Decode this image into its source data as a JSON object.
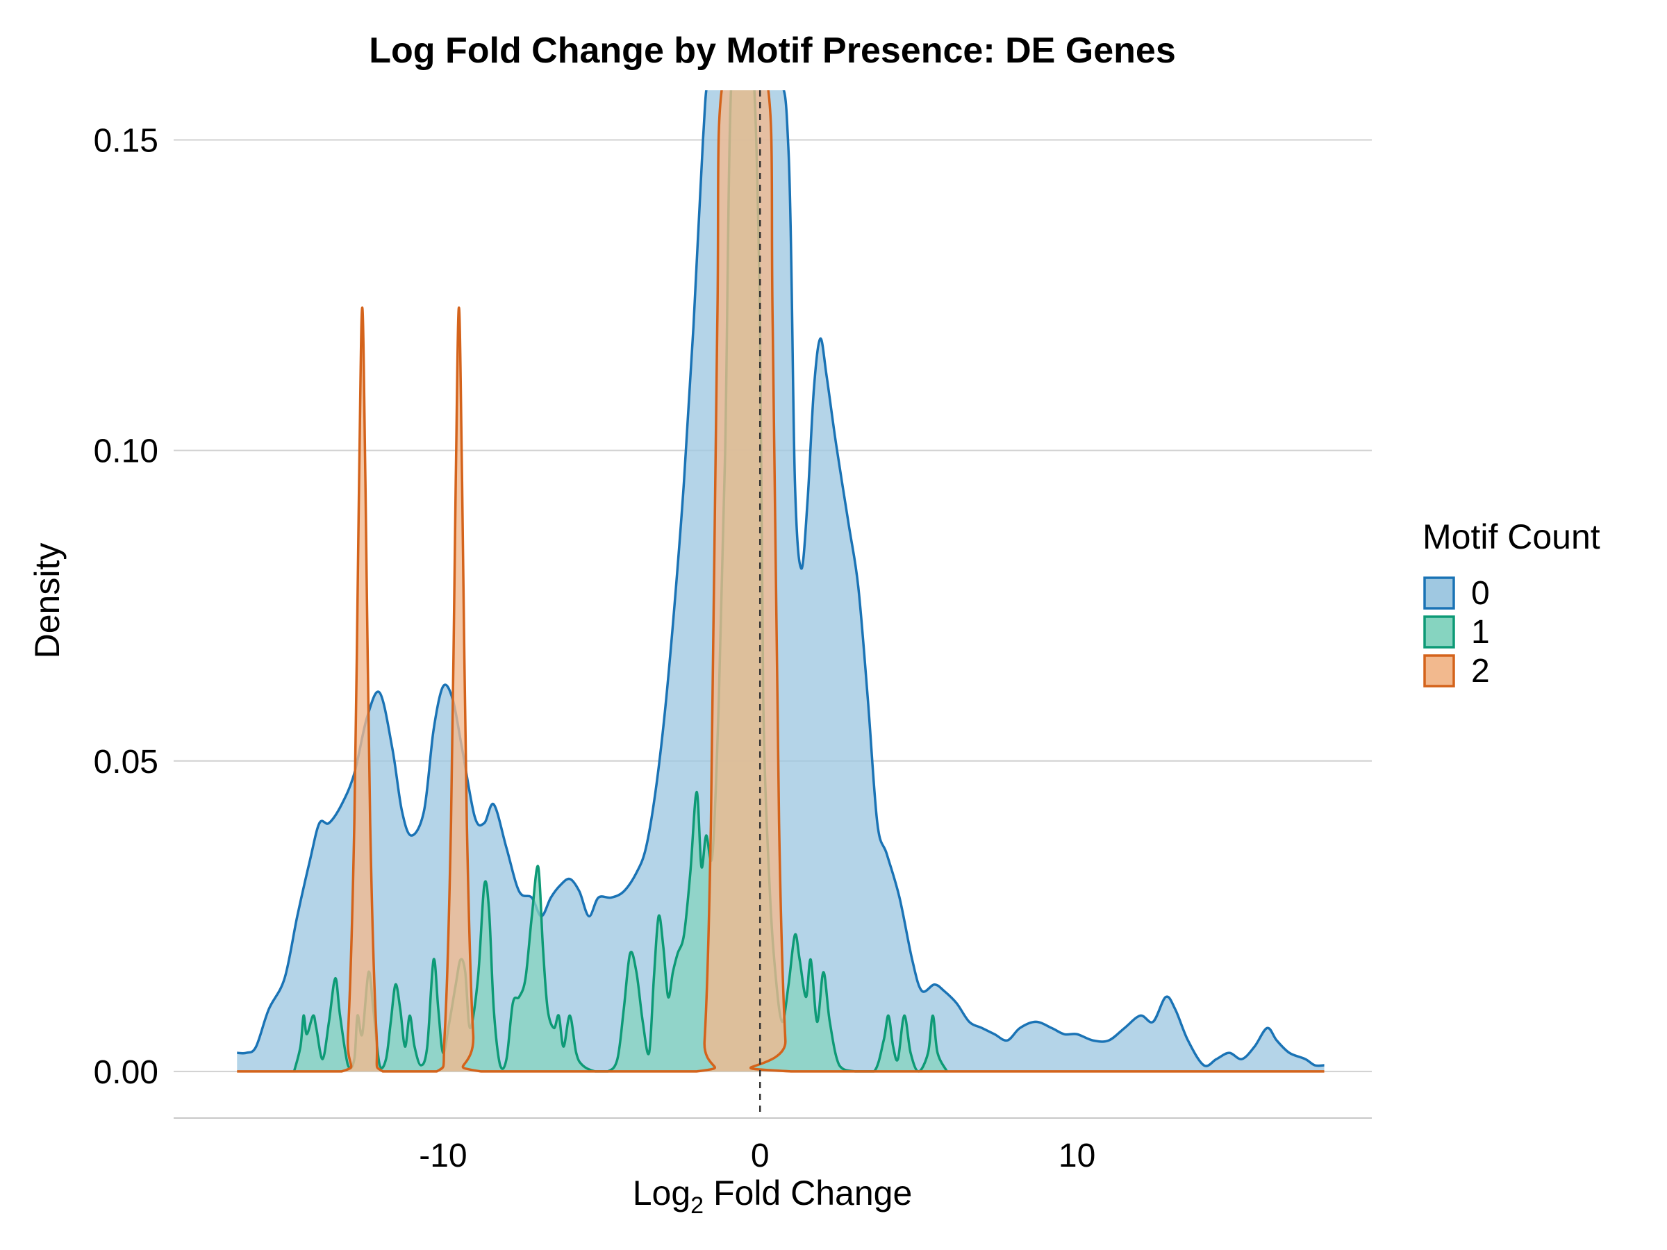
{
  "chart_data": {
    "type": "area",
    "title": "Log Fold Change by Motif Presence: DE Genes",
    "xlabel": {
      "base": "Log",
      "subscript": "2",
      "rest": " Fold Change"
    },
    "ylabel": "Density",
    "xlim": [
      -18.5,
      19.3
    ],
    "ylim": [
      -0.0075,
      0.158
    ],
    "x_ticks": [
      -10,
      0,
      10
    ],
    "x_tick_labels": [
      "-10",
      "0",
      "10"
    ],
    "y_ticks": [
      0,
      0.05,
      0.1,
      0.15
    ],
    "y_tick_labels": [
      "0.00",
      "0.05",
      "0.10",
      "0.15"
    ],
    "grid": "horizontal-major",
    "reference_line": {
      "x": 0,
      "style": "dashed"
    },
    "legend": {
      "title": "Motif Count",
      "position": "right"
    },
    "series": [
      {
        "name": "0",
        "color": "#1a73b5",
        "fill": "#9fc8e1",
        "points": [
          [
            -16.5,
            0.003
          ],
          [
            -16.2,
            0.003
          ],
          [
            -15.9,
            0.004
          ],
          [
            -15.5,
            0.01
          ],
          [
            -15.0,
            0.015
          ],
          [
            -14.6,
            0.025
          ],
          [
            -14.2,
            0.034
          ],
          [
            -13.9,
            0.04
          ],
          [
            -13.6,
            0.04
          ],
          [
            -13.2,
            0.043
          ],
          [
            -12.8,
            0.048
          ],
          [
            -12.4,
            0.057
          ],
          [
            -12.0,
            0.061
          ],
          [
            -11.6,
            0.052
          ],
          [
            -11.3,
            0.042
          ],
          [
            -11.0,
            0.038
          ],
          [
            -10.6,
            0.042
          ],
          [
            -10.3,
            0.055
          ],
          [
            -10.0,
            0.062
          ],
          [
            -9.7,
            0.06
          ],
          [
            -9.4,
            0.052
          ],
          [
            -9.0,
            0.041
          ],
          [
            -8.7,
            0.04
          ],
          [
            -8.4,
            0.043
          ],
          [
            -8.0,
            0.036
          ],
          [
            -7.6,
            0.029
          ],
          [
            -7.2,
            0.028
          ],
          [
            -6.9,
            0.025
          ],
          [
            -6.6,
            0.028
          ],
          [
            -6.3,
            0.03
          ],
          [
            -6.0,
            0.031
          ],
          [
            -5.7,
            0.029
          ],
          [
            -5.4,
            0.025
          ],
          [
            -5.1,
            0.028
          ],
          [
            -4.7,
            0.028
          ],
          [
            -4.3,
            0.029
          ],
          [
            -3.9,
            0.032
          ],
          [
            -3.6,
            0.036
          ],
          [
            -3.3,
            0.045
          ],
          [
            -3.0,
            0.058
          ],
          [
            -2.7,
            0.075
          ],
          [
            -2.4,
            0.095
          ],
          [
            -2.1,
            0.12
          ],
          [
            -1.8,
            0.15
          ],
          [
            -1.6,
            0.16
          ],
          [
            -1.0,
            0.16
          ],
          [
            0.5,
            0.16
          ],
          [
            0.9,
            0.148
          ],
          [
            1.1,
            0.095
          ],
          [
            1.3,
            0.081
          ],
          [
            1.5,
            0.092
          ],
          [
            1.7,
            0.11
          ],
          [
            1.9,
            0.118
          ],
          [
            2.1,
            0.112
          ],
          [
            2.4,
            0.101
          ],
          [
            2.8,
            0.088
          ],
          [
            3.1,
            0.078
          ],
          [
            3.4,
            0.06
          ],
          [
            3.7,
            0.04
          ],
          [
            4.0,
            0.035
          ],
          [
            4.4,
            0.028
          ],
          [
            4.8,
            0.018
          ],
          [
            5.1,
            0.013
          ],
          [
            5.5,
            0.014
          ],
          [
            5.8,
            0.013
          ],
          [
            6.2,
            0.011
          ],
          [
            6.6,
            0.008
          ],
          [
            7.0,
            0.007
          ],
          [
            7.4,
            0.006
          ],
          [
            7.8,
            0.005
          ],
          [
            8.2,
            0.007
          ],
          [
            8.7,
            0.008
          ],
          [
            9.2,
            0.007
          ],
          [
            9.6,
            0.006
          ],
          [
            10.0,
            0.006
          ],
          [
            10.5,
            0.005
          ],
          [
            11.0,
            0.005
          ],
          [
            11.5,
            0.007
          ],
          [
            12.0,
            0.009
          ],
          [
            12.4,
            0.008
          ],
          [
            12.8,
            0.012
          ],
          [
            13.1,
            0.01
          ],
          [
            13.5,
            0.005
          ],
          [
            14.0,
            0.001
          ],
          [
            14.4,
            0.002
          ],
          [
            14.8,
            0.003
          ],
          [
            15.2,
            0.002
          ],
          [
            15.6,
            0.004
          ],
          [
            16.0,
            0.007
          ],
          [
            16.3,
            0.005
          ],
          [
            16.7,
            0.003
          ],
          [
            17.2,
            0.002
          ],
          [
            17.5,
            0.001
          ],
          [
            17.8,
            0.001
          ]
        ]
      },
      {
        "name": "1",
        "color": "#0d9a76",
        "fill": "#86d4c0",
        "points": [
          [
            -14.7,
            0.0
          ],
          [
            -14.5,
            0.004
          ],
          [
            -14.4,
            0.009
          ],
          [
            -14.3,
            0.006
          ],
          [
            -14.1,
            0.009
          ],
          [
            -14.0,
            0.007
          ],
          [
            -13.8,
            0.002
          ],
          [
            -13.6,
            0.008
          ],
          [
            -13.4,
            0.015
          ],
          [
            -13.25,
            0.009
          ],
          [
            -13.0,
            0.001
          ],
          [
            -12.8,
            0.002
          ],
          [
            -12.7,
            0.009
          ],
          [
            -12.55,
            0.006
          ],
          [
            -12.35,
            0.016
          ],
          [
            -12.2,
            0.01
          ],
          [
            -12.0,
            0.001
          ],
          [
            -11.8,
            0.002
          ],
          [
            -11.65,
            0.008
          ],
          [
            -11.5,
            0.014
          ],
          [
            -11.35,
            0.01
          ],
          [
            -11.2,
            0.004
          ],
          [
            -11.05,
            0.009
          ],
          [
            -10.9,
            0.004
          ],
          [
            -10.7,
            0.001
          ],
          [
            -10.5,
            0.004
          ],
          [
            -10.3,
            0.018
          ],
          [
            -10.15,
            0.01
          ],
          [
            -10.0,
            0.003
          ],
          [
            -9.8,
            0.008
          ],
          [
            -9.6,
            0.014
          ],
          [
            -9.45,
            0.018
          ],
          [
            -9.3,
            0.016
          ],
          [
            -9.15,
            0.007
          ],
          [
            -8.9,
            0.015
          ],
          [
            -8.7,
            0.03
          ],
          [
            -8.55,
            0.026
          ],
          [
            -8.4,
            0.01
          ],
          [
            -8.2,
            0.001
          ],
          [
            -8.0,
            0.002
          ],
          [
            -7.8,
            0.011
          ],
          [
            -7.6,
            0.012
          ],
          [
            -7.4,
            0.015
          ],
          [
            -7.2,
            0.025
          ],
          [
            -7.0,
            0.033
          ],
          [
            -6.85,
            0.02
          ],
          [
            -6.7,
            0.01
          ],
          [
            -6.5,
            0.007
          ],
          [
            -6.35,
            0.009
          ],
          [
            -6.2,
            0.004
          ],
          [
            -6.0,
            0.009
          ],
          [
            -5.8,
            0.003
          ],
          [
            -5.6,
            0.001
          ],
          [
            -5.2,
            0.0
          ],
          [
            -4.8,
            0.0
          ],
          [
            -4.5,
            0.002
          ],
          [
            -4.3,
            0.01
          ],
          [
            -4.1,
            0.019
          ],
          [
            -3.9,
            0.016
          ],
          [
            -3.7,
            0.008
          ],
          [
            -3.5,
            0.003
          ],
          [
            -3.35,
            0.015
          ],
          [
            -3.2,
            0.025
          ],
          [
            -3.05,
            0.02
          ],
          [
            -2.9,
            0.012
          ],
          [
            -2.75,
            0.016
          ],
          [
            -2.6,
            0.019
          ],
          [
            -2.4,
            0.022
          ],
          [
            -2.2,
            0.032
          ],
          [
            -2.0,
            0.045
          ],
          [
            -1.85,
            0.033
          ],
          [
            -1.7,
            0.038
          ],
          [
            -1.5,
            0.035
          ],
          [
            -1.3,
            0.06
          ],
          [
            -1.1,
            0.1
          ],
          [
            -0.9,
            0.16
          ],
          [
            -0.5,
            0.16
          ],
          [
            -0.2,
            0.16
          ],
          [
            0.0,
            0.12
          ],
          [
            0.1,
            0.06
          ],
          [
            0.3,
            0.03
          ],
          [
            0.5,
            0.015
          ],
          [
            0.7,
            0.008
          ],
          [
            0.9,
            0.014
          ],
          [
            1.1,
            0.022
          ],
          [
            1.25,
            0.018
          ],
          [
            1.45,
            0.012
          ],
          [
            1.6,
            0.018
          ],
          [
            1.8,
            0.008
          ],
          [
            2.0,
            0.016
          ],
          [
            2.2,
            0.008
          ],
          [
            2.5,
            0.001
          ],
          [
            3.0,
            0.0
          ],
          [
            3.6,
            0.0
          ],
          [
            3.9,
            0.005
          ],
          [
            4.05,
            0.009
          ],
          [
            4.2,
            0.004
          ],
          [
            4.35,
            0.002
          ],
          [
            4.55,
            0.009
          ],
          [
            4.75,
            0.003
          ],
          [
            5.0,
            0.0
          ],
          [
            5.3,
            0.003
          ],
          [
            5.45,
            0.009
          ],
          [
            5.6,
            0.003
          ],
          [
            5.9,
            0.0
          ]
        ]
      },
      {
        "name": "2",
        "color": "#d4631b",
        "fill": "#f2b98e",
        "points": [
          [
            -16.5,
            0.0
          ],
          [
            -13.2,
            0.0
          ],
          [
            -13.0,
            0.006
          ],
          [
            -12.8,
            0.04
          ],
          [
            -12.65,
            0.095
          ],
          [
            -12.55,
            0.123
          ],
          [
            -12.45,
            0.095
          ],
          [
            -12.3,
            0.04
          ],
          [
            -12.1,
            0.006
          ],
          [
            -11.9,
            0.0
          ],
          [
            -10.2,
            0.0
          ],
          [
            -9.95,
            0.006
          ],
          [
            -9.75,
            0.04
          ],
          [
            -9.6,
            0.095
          ],
          [
            -9.5,
            0.123
          ],
          [
            -9.4,
            0.095
          ],
          [
            -9.25,
            0.04
          ],
          [
            -9.05,
            0.006
          ],
          [
            -8.8,
            0.0
          ],
          [
            -2.0,
            0.0
          ],
          [
            -1.75,
            0.005
          ],
          [
            -1.55,
            0.04
          ],
          [
            -1.35,
            0.12
          ],
          [
            -1.15,
            0.16
          ],
          [
            0.2,
            0.16
          ],
          [
            0.4,
            0.12
          ],
          [
            0.6,
            0.04
          ],
          [
            0.8,
            0.005
          ],
          [
            1.0,
            0.0
          ],
          [
            17.8,
            0.0
          ]
        ]
      }
    ]
  }
}
